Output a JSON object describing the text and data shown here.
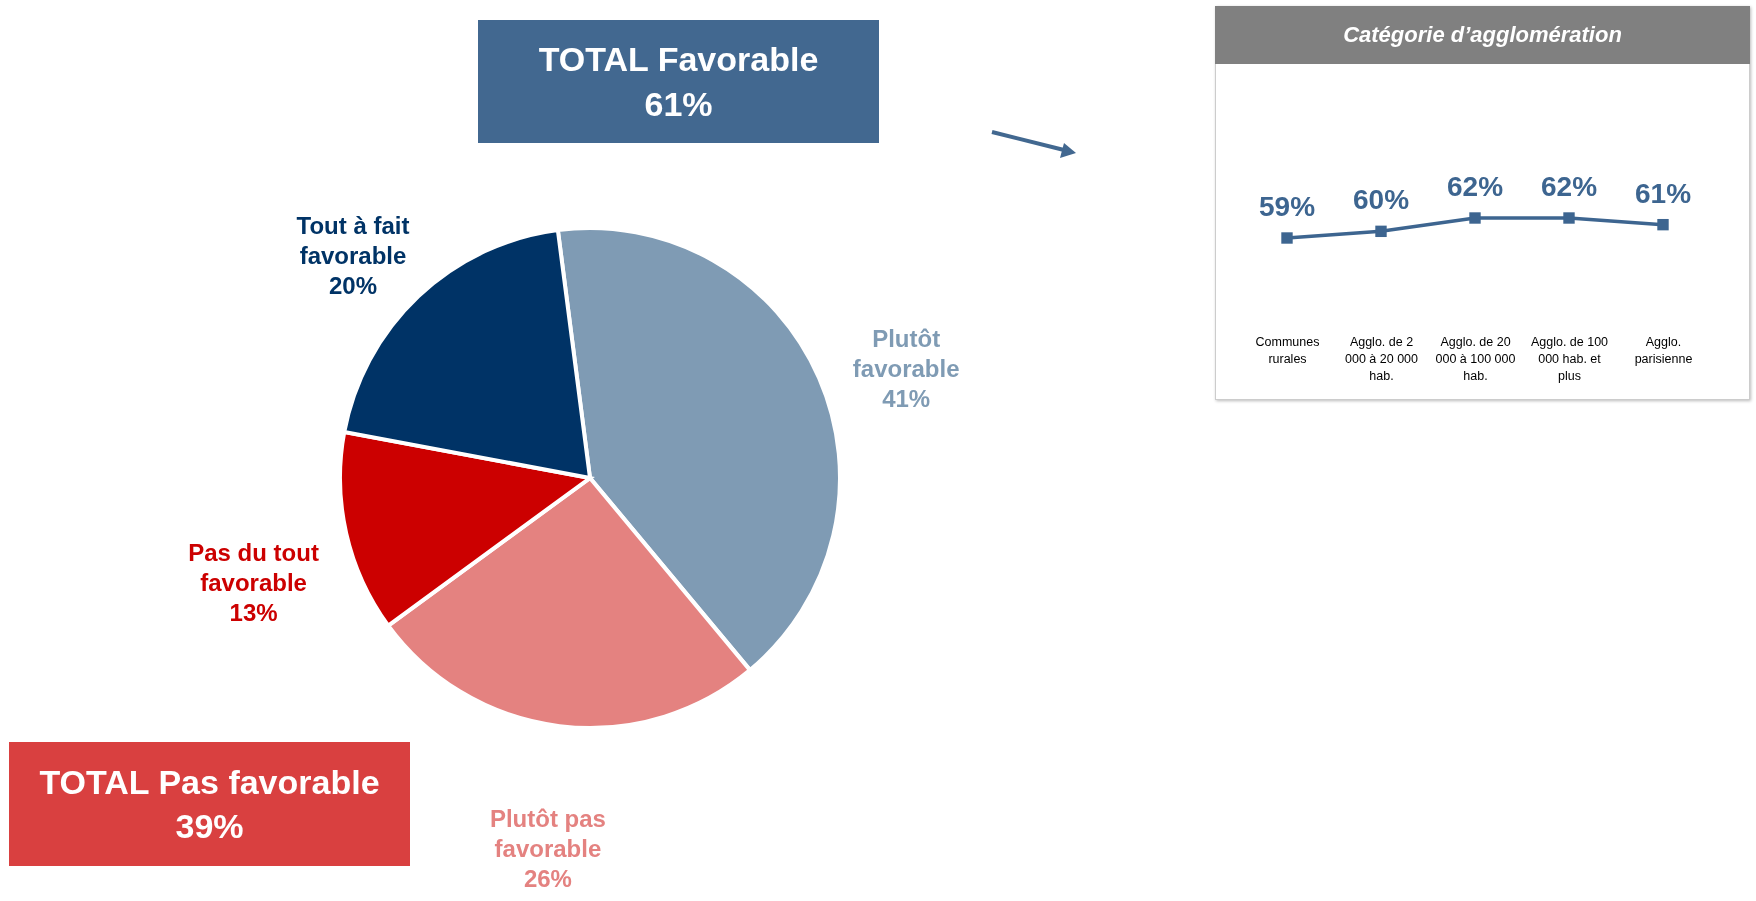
{
  "chart_data": [
    {
      "type": "pie",
      "categories": [
        "Plutôt favorable",
        "Plutôt pas favorable",
        "Pas du tout favorable",
        "Tout à fait favorable"
      ],
      "values": [
        41,
        26,
        13,
        20
      ],
      "colors": [
        "#7f9bb4",
        "#e48280",
        "#cc0000",
        "#003366"
      ],
      "value_labels": [
        "41%",
        "26%",
        "13%",
        "20%"
      ],
      "annotations": [
        "TOTAL Favorable 61%",
        "TOTAL Pas favorable 39%"
      ]
    },
    {
      "type": "line",
      "title": "Catégorie d’agglomération",
      "categories": [
        "Communes rurales",
        "Agglo. de 2 000 à 20 000 hab.",
        "Agglo. de 20 000 à 100 000 hab.",
        "Agglo. de 100 000 hab. et plus",
        "Agglo. parisienne"
      ],
      "series": [
        {
          "color": "#3d6590",
          "values": [
            59,
            60,
            62,
            62,
            61
          ],
          "value_labels": [
            "59%",
            "60%",
            "62%",
            "62%",
            "61%"
          ]
        }
      ],
      "marker": "square",
      "tick_labels": "x"
    }
  ]
}
